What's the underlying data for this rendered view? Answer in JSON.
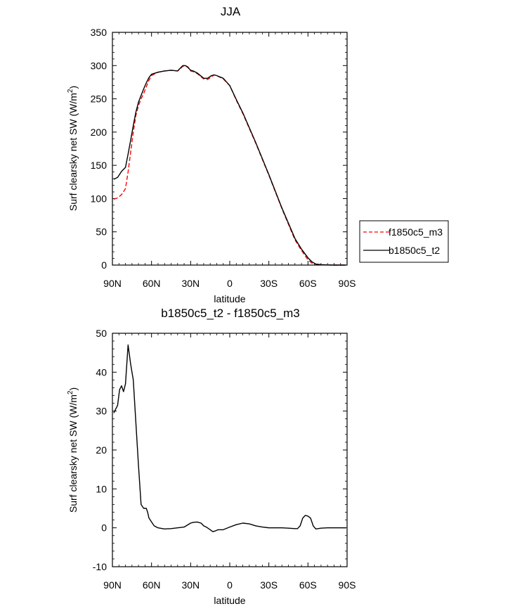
{
  "chart_data": [
    {
      "type": "line",
      "title": "JJA",
      "xlabel": "latitude",
      "ylabel": "Surf clearsky net SW (W/m",
      "ylabel_sup": "2",
      "ylabel_close": ")",
      "xlim": [
        90,
        -90
      ],
      "ylim": [
        0,
        350
      ],
      "x_ticks": [
        90,
        60,
        30,
        0,
        -30,
        -60,
        -90
      ],
      "x_tick_labels": [
        "90N",
        "60N",
        "30N",
        "0",
        "30S",
        "60S",
        "90S"
      ],
      "y_ticks": [
        0,
        50,
        100,
        150,
        200,
        250,
        300,
        350
      ],
      "y_tick_labels": [
        "0",
        "50",
        "100",
        "150",
        "200",
        "250",
        "300",
        "350"
      ],
      "legend": [
        "f1850c5_m3",
        "b1850c5_t2"
      ],
      "series": [
        {
          "name": "f1850c5_m3",
          "color": "#ff0000",
          "dash": "dashed",
          "x": [
            89,
            86,
            83,
            80,
            78,
            76,
            74,
            72,
            70,
            68,
            66,
            64,
            62,
            60,
            55,
            50,
            45,
            40,
            38,
            36,
            34,
            32,
            30,
            28,
            25,
            20,
            17,
            14,
            12,
            10,
            5,
            0,
            -5,
            -10,
            -20,
            -30,
            -40,
            -50,
            -55,
            -60,
            -63,
            -66,
            -70,
            -75,
            -80,
            -85,
            -89
          ],
          "values": [
            99,
            101,
            106,
            115,
            140,
            170,
            200,
            225,
            240,
            250,
            258,
            268,
            278,
            285,
            290,
            292,
            293,
            292,
            295,
            299,
            300,
            298,
            292,
            291,
            288,
            280,
            279,
            283,
            286,
            285,
            280,
            270,
            248,
            228,
            183,
            135,
            85,
            38,
            22,
            8,
            3,
            1.5,
            0.5,
            0.2,
            0,
            0,
            0
          ]
        },
        {
          "name": "b1850c5_t2",
          "color": "#000000",
          "dash": "solid",
          "x": [
            89,
            86,
            83,
            80,
            78,
            76,
            74,
            72,
            70,
            68,
            66,
            64,
            62,
            60,
            55,
            50,
            45,
            40,
            38,
            36,
            34,
            32,
            30,
            28,
            25,
            20,
            17,
            14,
            12,
            10,
            5,
            0,
            -5,
            -10,
            -20,
            -30,
            -40,
            -50,
            -55,
            -60,
            -63,
            -66,
            -70,
            -75,
            -80,
            -85,
            -89
          ],
          "values": [
            129,
            132,
            141,
            147,
            167,
            188,
            210,
            230,
            245,
            255,
            265,
            274,
            282,
            287,
            290,
            292,
            293,
            292,
            296,
            300,
            300,
            297,
            293,
            292,
            289,
            281,
            281,
            285,
            286,
            285,
            281,
            270,
            249,
            229,
            184,
            136,
            86,
            40,
            24,
            11,
            5,
            1.5,
            0.5,
            0.2,
            0,
            0,
            0
          ]
        }
      ]
    },
    {
      "type": "line",
      "title": "b1850c5_t2 - f1850c5_m3",
      "xlabel": "latitude",
      "ylabel": "Surf clearsky net SW (W/m",
      "ylabel_sup": "2",
      "ylabel_close": ")",
      "xlim": [
        90,
        -90
      ],
      "ylim": [
        -10,
        50
      ],
      "x_ticks": [
        90,
        60,
        30,
        0,
        -30,
        -60,
        -90
      ],
      "x_tick_labels": [
        "90N",
        "60N",
        "30N",
        "0",
        "30S",
        "60S",
        "90S"
      ],
      "y_ticks": [
        -10,
        0,
        10,
        20,
        30,
        40,
        50
      ],
      "y_tick_labels": [
        "-10",
        "0",
        "10",
        "20",
        "30",
        "40",
        "50"
      ],
      "series": [
        {
          "name": "b1850c5_t2 - f1850c5_m3",
          "color": "#000000",
          "dash": "solid",
          "x": [
            89,
            86,
            84.5,
            83,
            81.5,
            80,
            78,
            76,
            74,
            72,
            70,
            68,
            66,
            65,
            64,
            63,
            62,
            60,
            58,
            55,
            50,
            45,
            40,
            35,
            30,
            28,
            25,
            22,
            20,
            18,
            15,
            13,
            11,
            9,
            7,
            5,
            0,
            -5,
            -10,
            -15,
            -20,
            -25,
            -30,
            -40,
            -45,
            -50,
            -52,
            -54,
            -56,
            -58,
            -60,
            -62,
            -64,
            -66,
            -70,
            -75,
            -80,
            -85,
            -89
          ],
          "values": [
            29.5,
            31.5,
            35.5,
            36.5,
            35,
            37,
            47,
            42,
            38,
            27,
            16,
            6,
            5,
            5,
            5,
            4,
            2.5,
            1.5,
            0.5,
            0,
            -0.3,
            -0.2,
            0,
            0.2,
            1.2,
            1.4,
            1.5,
            1.2,
            0.5,
            0.2,
            -0.5,
            -1,
            -0.8,
            -0.5,
            -0.5,
            -0.5,
            0.2,
            0.8,
            1.2,
            1,
            0.5,
            0.2,
            0,
            0,
            -0.1,
            -0.2,
            -0.2,
            0.5,
            2.5,
            3.2,
            3,
            2.5,
            0.5,
            -0.3,
            -0.1,
            0,
            0,
            0,
            0
          ]
        }
      ]
    }
  ]
}
